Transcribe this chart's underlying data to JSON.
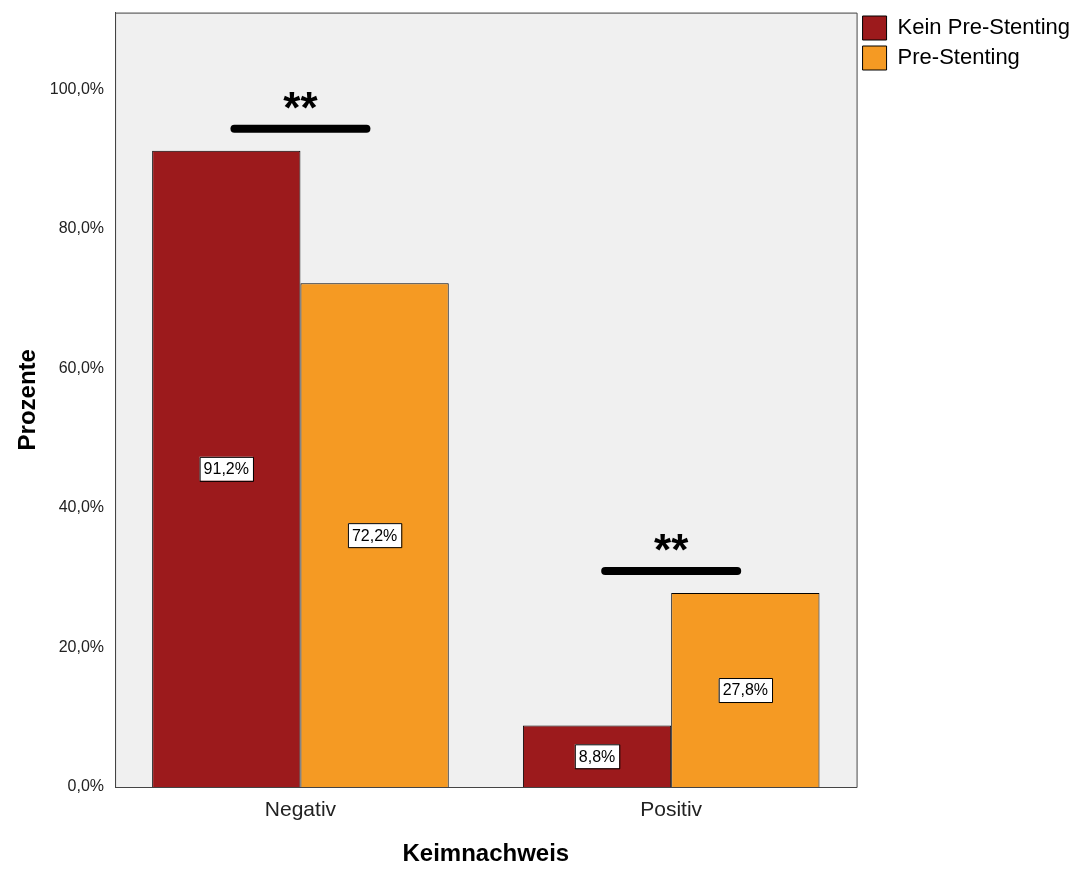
{
  "chart_data": {
    "type": "bar",
    "xlabel": "Keimnachweis",
    "ylabel": "Prozente",
    "categories": [
      "Negativ",
      "Positiv"
    ],
    "series": [
      {
        "name": "Kein Pre-Stenting",
        "color": "#9c1a1c",
        "values": [
          91.2,
          8.8
        ],
        "value_labels": [
          "91,2%",
          "8,8%"
        ]
      },
      {
        "name": "Pre-Stenting",
        "color": "#f59a23",
        "values": [
          72.2,
          27.8
        ],
        "value_labels": [
          "72,2%",
          "27,8%"
        ]
      }
    ],
    "ylim": [
      0,
      111
    ],
    "yticks": [
      {
        "value": 0,
        "label": "0,0%"
      },
      {
        "value": 20,
        "label": "20,0%"
      },
      {
        "value": 40,
        "label": "40,0%"
      },
      {
        "value": 60,
        "label": "60,0%"
      },
      {
        "value": 80,
        "label": "80,0%"
      },
      {
        "value": 100,
        "label": "100,0%"
      }
    ],
    "grid": false,
    "legend": "right",
    "annotations": [
      "**",
      "**"
    ]
  }
}
